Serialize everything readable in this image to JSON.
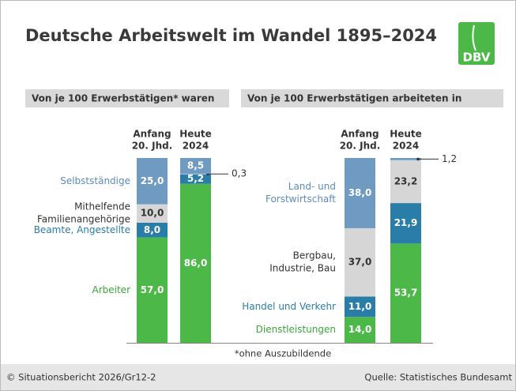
{
  "title": "Deutsche Arbeitswelt im Wandel 1895–2024",
  "logo": "DBV",
  "footnote": "*ohne Auszubildende",
  "copyright": "© Situationsbericht 2026/Gr12-2",
  "source": "Quelle: Statistisches Bundesamt",
  "chart_data": [
    {
      "type": "bar",
      "stacked": true,
      "title": "Von je 100 Erwerbstätigen* waren",
      "categories": [
        [
          "Anfang",
          "20. Jhd."
        ],
        [
          "Heute",
          "2024"
        ]
      ],
      "ylim": [
        0,
        100
      ],
      "series": [
        {
          "name": [
            "Selbstständige"
          ],
          "color": "#6f9bc2",
          "name_color": "#5b8cbb",
          "label_color": "#ffffff",
          "values": [
            25.0,
            8.5
          ],
          "value_labels": [
            "25,0",
            "8,5"
          ]
        },
        {
          "name": [
            "Mithelfende",
            "Familienangehörige"
          ],
          "color": "#d6d6d6",
          "name_color": "#333333",
          "label_color": "#333333",
          "values": [
            10.0,
            0.3
          ],
          "value_labels": [
            "10,0",
            "0,3"
          ]
        },
        {
          "name": [
            "Beamte, Angestellte"
          ],
          "color": "#2a7da8",
          "name_color": "#2a7da8",
          "label_color": "#ffffff",
          "values": [
            8.0,
            5.2
          ],
          "value_labels": [
            "8,0",
            "5,2"
          ]
        },
        {
          "name": [
            "Arbeiter"
          ],
          "color": "#4cb848",
          "name_color": "#3aa83a",
          "label_color": "#ffffff",
          "values": [
            57.0,
            86.0
          ],
          "value_labels": [
            "57,0",
            "86,0"
          ]
        }
      ]
    },
    {
      "type": "bar",
      "stacked": true,
      "title": "Von je 100 Erwerbstätigen arbeiteten in",
      "categories": [
        [
          "Anfang",
          "20. Jhd."
        ],
        [
          "Heute",
          "2024"
        ]
      ],
      "ylim": [
        0,
        100
      ],
      "series": [
        {
          "name": [
            "Land- und",
            "Forstwirtschaft"
          ],
          "color": "#6f9bc2",
          "name_color": "#5b8cbb",
          "label_color": "#ffffff",
          "values": [
            38.0,
            1.2
          ],
          "value_labels": [
            "38,0",
            "1,2"
          ]
        },
        {
          "name": [
            "Bergbau,",
            "Industrie, Bau"
          ],
          "color": "#d6d6d6",
          "name_color": "#333333",
          "label_color": "#333333",
          "values": [
            37.0,
            23.2
          ],
          "value_labels": [
            "37,0",
            "23,2"
          ]
        },
        {
          "name": [
            "Handel und Verkehr"
          ],
          "color": "#2a7da8",
          "name_color": "#2a7da8",
          "label_color": "#ffffff",
          "values": [
            11.0,
            21.9
          ],
          "value_labels": [
            "11,0",
            "21,9"
          ]
        },
        {
          "name": [
            "Dienstleistungen"
          ],
          "color": "#4cb848",
          "name_color": "#3aa83a",
          "label_color": "#ffffff",
          "values": [
            14.0,
            53.7
          ],
          "value_labels": [
            "14,0",
            "53,7"
          ]
        }
      ]
    }
  ]
}
